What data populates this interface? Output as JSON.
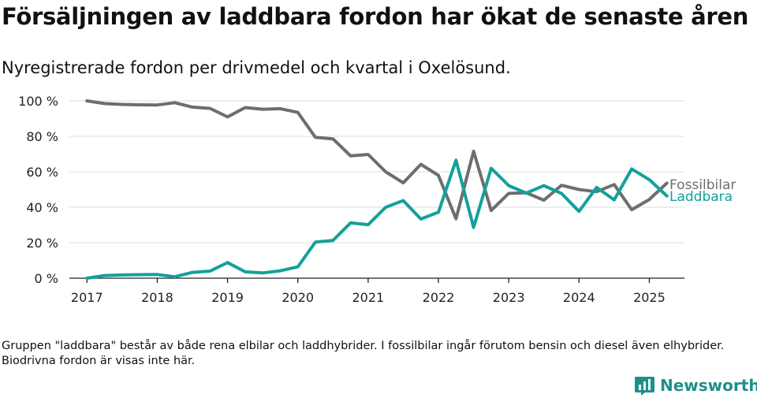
{
  "title": "Försäljningen av laddbara fordon har ökat de senaste åren",
  "subtitle": "Nyregistrerade fordon per drivmedel och kvartal i Oxelösund.",
  "note": "Gruppen \"laddbara\" består av både rena elbilar och laddhybrider. I fossilbilar ingår förutom bensin och diesel även elhybrider. Biodrivna fordon är visas inte här.",
  "logo": {
    "text": "Newsworthy",
    "icon": "bar-chart-icon",
    "color": "#1f8f8a"
  },
  "chart_data": {
    "type": "line",
    "ylim": [
      0,
      100
    ],
    "xlim": [
      2016.75,
      2025.5
    ],
    "yticks": [
      0,
      20,
      40,
      60,
      80,
      100
    ],
    "ytick_labels": [
      "0 %",
      "20 %",
      "40 %",
      "60 %",
      "80 %",
      "100 %"
    ],
    "xticks": [
      2017,
      2018,
      2019,
      2020,
      2021,
      2022,
      2023,
      2024,
      2025
    ],
    "xtick_labels": [
      "2017",
      "2018",
      "2019",
      "2020",
      "2021",
      "2022",
      "2023",
      "2024",
      "2025"
    ],
    "x": [
      2017.0,
      2017.25,
      2017.5,
      2017.75,
      2018.0,
      2018.25,
      2018.5,
      2018.75,
      2019.0,
      2019.25,
      2019.5,
      2019.75,
      2020.0,
      2020.25,
      2020.5,
      2020.75,
      2021.0,
      2021.25,
      2021.5,
      2021.75,
      2022.0,
      2022.25,
      2022.5,
      2022.75,
      2023.0,
      2023.25,
      2023.5,
      2023.75,
      2024.0,
      2024.25,
      2024.5,
      2024.75,
      2025.0,
      2025.25
    ],
    "series": [
      {
        "name": "Fossilbilar",
        "color": "#6e6e70",
        "values": [
          100,
          98.5,
          98,
          97.8,
          97.7,
          99,
          96.5,
          95.8,
          91,
          96.2,
          95.3,
          95.6,
          93.5,
          79.4,
          78.6,
          69,
          69.8,
          60,
          53.8,
          64.2,
          58,
          33.5,
          71.6,
          38.2,
          47.8,
          48.2,
          44,
          52.4,
          50,
          48.8,
          52.8,
          38.6,
          44.4,
          53.6
        ]
      },
      {
        "name": "Laddbara",
        "color": "#13a19a",
        "values": [
          0,
          1.5,
          1.8,
          2,
          2.1,
          0.8,
          3.3,
          4,
          8.8,
          3.6,
          3,
          4.2,
          6.4,
          20.4,
          21.3,
          31.2,
          30.2,
          40,
          43.8,
          33.4,
          37.2,
          66.6,
          28.6,
          62,
          52.2,
          48,
          52.2,
          47.8,
          37.7,
          51.2,
          44.2,
          61.6,
          55.6,
          46.4
        ]
      }
    ]
  }
}
